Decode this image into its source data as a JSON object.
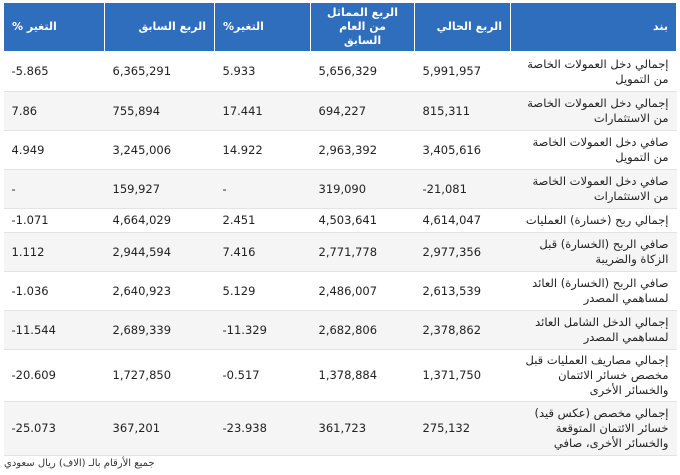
{
  "headers": {
    "item": "بند",
    "current": "الربع الحالي",
    "same_last_year": "الربع المماثل من العام السابق",
    "change_pct_1": "التغير%",
    "previous": "الربع السابق",
    "change_pct_2": "التغير %"
  },
  "rows": [
    {
      "item": "إجمالي دخل العمولات الخاصة من التمويل",
      "current": "5,991,957",
      "same_last_year": "5,656,329",
      "change_1": "5.933",
      "previous": "6,365,291",
      "change_2": "-5.865"
    },
    {
      "item": "إجمالي دخل العمولات الخاصة من الاستثمارات",
      "current": "815,311",
      "same_last_year": "694,227",
      "change_1": "17.441",
      "previous": "755,894",
      "change_2": "7.86"
    },
    {
      "item": "صافي دخل العمولات الخاصة من التمويل",
      "current": "3,405,616",
      "same_last_year": "2,963,392",
      "change_1": "14.922",
      "previous": "3,245,006",
      "change_2": "4.949"
    },
    {
      "item": "صافي دخل العمولات الخاصة من الاستثمارات",
      "current": "-21,081",
      "same_last_year": "319,090",
      "change_1": "-",
      "previous": "159,927",
      "change_2": "-"
    },
    {
      "item": "إجمالي ربح (خسارة) العمليات",
      "current": "4,614,047",
      "same_last_year": "4,503,641",
      "change_1": "2.451",
      "previous": "4,664,029",
      "change_2": "-1.071"
    },
    {
      "item": "صافي الربح (الخسارة) قبل الزكاة والضريبة",
      "current": "2,977,356",
      "same_last_year": "2,771,778",
      "change_1": "7.416",
      "previous": "2,944,594",
      "change_2": "1.112"
    },
    {
      "item": "صافي الربح (الخسارة) العائد لمساهمي المصدر",
      "current": "2,613,539",
      "same_last_year": "2,486,007",
      "change_1": "5.129",
      "previous": "2,640,923",
      "change_2": "-1.036"
    },
    {
      "item": "إجمالي الدخل الشامل العائد لمساهمي المصدر",
      "current": "2,378,862",
      "same_last_year": "2,682,806",
      "change_1": "-11.329",
      "previous": "2,689,339",
      "change_2": "-11.544"
    },
    {
      "item": "إجمالي مصاريف العمليات قبل مخصص خسائر الائتمان والخسائر الأخرى",
      "current": "1,371,750",
      "same_last_year": "1,378,884",
      "change_1": "-0.517",
      "previous": "1,727,850",
      "change_2": "-20.609"
    },
    {
      "item": "إجمالي مخصص (عكس قيد) خسائر الائتمان المتوقعة والخسائر الأخرى، صافي",
      "current": "275,132",
      "same_last_year": "361,723",
      "change_1": "-23.938",
      "previous": "367,201",
      "change_2": "-25.073"
    }
  ],
  "footnote": "جميع الأرقام بالـ (الاف) ريال سعودي",
  "colors": {
    "header_bg": "#2f6dbd",
    "positive": "#2eb04d",
    "negative": "#e0262b"
  }
}
